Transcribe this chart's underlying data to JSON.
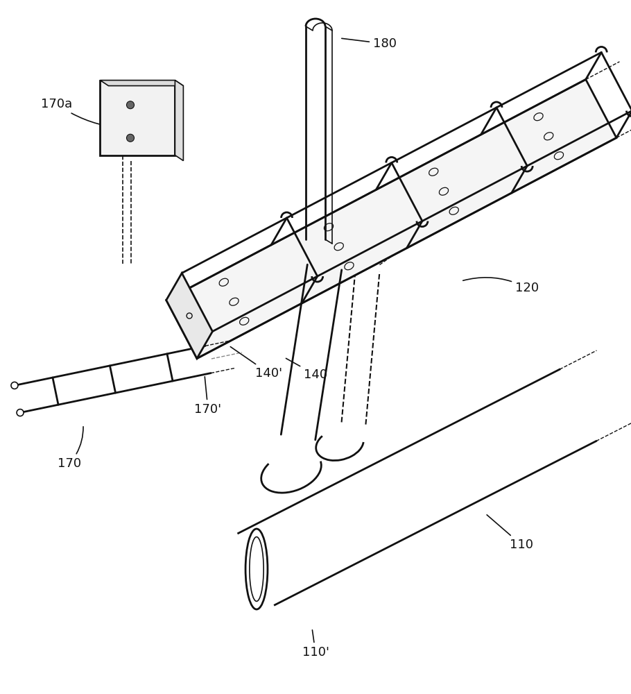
{
  "bg_color": "#ffffff",
  "line_color": "#111111",
  "lw_main": 2.0,
  "lw_thin": 1.2,
  "lw_dash": 1.0,
  "label_fontsize": 13,
  "figsize": [
    9.1,
    10.0
  ],
  "dpi": 100
}
